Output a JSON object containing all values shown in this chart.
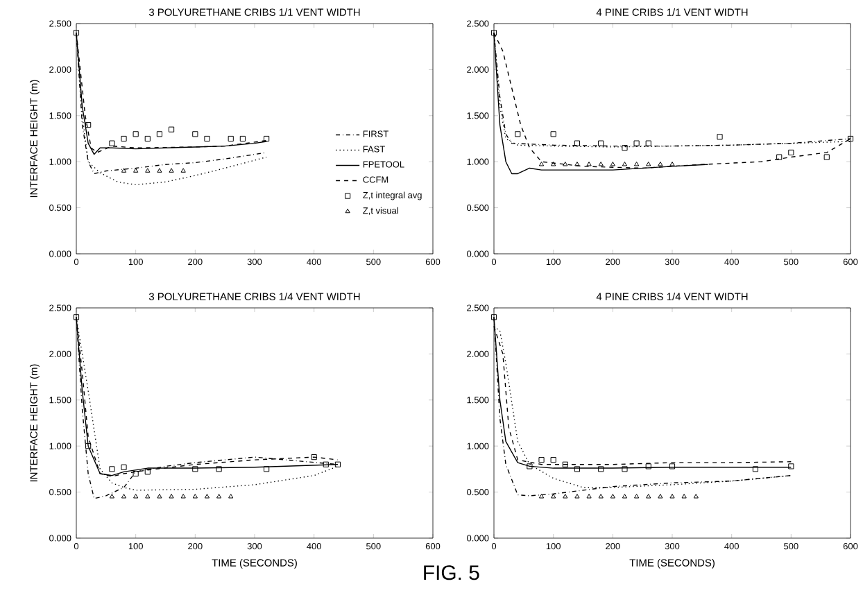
{
  "chart_data": [
    {
      "type": "line",
      "title": "3 POLYURETHANE CRIBS  1/1 VENT WIDTH",
      "ylabel": "INTERFACE HEIGHT (m)",
      "xlim": [
        0,
        600
      ],
      "ylim": [
        0,
        2.5
      ],
      "xticks": [
        0,
        100,
        200,
        300,
        400,
        500,
        600
      ],
      "yticks": [
        {
          "value": 0,
          "label": "0.000"
        },
        {
          "value": 0.5,
          "label": "0.500"
        },
        {
          "value": 1,
          "label": "1.000"
        },
        {
          "value": 1.5,
          "label": "1.500"
        },
        {
          "value": 2,
          "label": "2.000"
        },
        {
          "value": 2.5,
          "label": "2.500"
        }
      ],
      "legend": "right",
      "series": [
        {
          "name": "FIRST",
          "line_style": "dashdot",
          "color": "#000000",
          "x": [
            0,
            10,
            20,
            30,
            50,
            100,
            150,
            200,
            250,
            320
          ],
          "values": [
            2.4,
            1.4,
            1.0,
            0.87,
            0.9,
            0.93,
            0.97,
            0.99,
            1.03,
            1.1
          ]
        },
        {
          "name": "FAST",
          "line_style": "dotted",
          "color": "#000000",
          "x": [
            0,
            10,
            20,
            40,
            70,
            100,
            150,
            200,
            250,
            320
          ],
          "values": [
            2.4,
            1.5,
            1.0,
            0.88,
            0.78,
            0.75,
            0.78,
            0.85,
            0.93,
            1.05
          ]
        },
        {
          "name": "FPETOOL",
          "line_style": "solid",
          "color": "#000000",
          "x": [
            0,
            10,
            20,
            30,
            40,
            60,
            100,
            150,
            200,
            250,
            300,
            320
          ],
          "values": [
            2.4,
            1.6,
            1.2,
            1.08,
            1.15,
            1.15,
            1.14,
            1.15,
            1.16,
            1.17,
            1.2,
            1.22
          ]
        },
        {
          "name": "CCFM",
          "line_style": "dashed",
          "color": "#000000",
          "x": [
            0,
            15,
            25,
            35,
            60,
            100,
            200,
            250,
            320
          ],
          "values": [
            2.4,
            1.5,
            1.15,
            1.1,
            1.17,
            1.15,
            1.16,
            1.17,
            1.23
          ]
        },
        {
          "name": "Z,t integral avg",
          "type": "scatter",
          "marker": "square",
          "color": "#000000",
          "x": [
            0,
            20,
            60,
            80,
            100,
            120,
            140,
            160,
            200,
            220,
            260,
            280,
            320
          ],
          "values": [
            2.4,
            1.4,
            1.2,
            1.25,
            1.3,
            1.25,
            1.3,
            1.35,
            1.3,
            1.25,
            1.25,
            1.25,
            1.25
          ]
        },
        {
          "name": "Z,t visual",
          "type": "scatter",
          "marker": "triangle",
          "color": "#000000",
          "x": [
            80,
            100,
            120,
            140,
            160,
            180
          ],
          "values": [
            0.9,
            0.9,
            0.9,
            0.9,
            0.9,
            0.9
          ]
        }
      ]
    },
    {
      "type": "line",
      "title": "4 PINE CRIBS  1/1 VENT WIDTH",
      "xlim": [
        0,
        600
      ],
      "ylim": [
        0,
        2.5
      ],
      "xticks": [
        0,
        100,
        200,
        300,
        400,
        500,
        600
      ],
      "yticks": [
        {
          "value": 0,
          "label": "0.000"
        },
        {
          "value": 0.5,
          "label": "0.500"
        },
        {
          "value": 1,
          "label": "1.000"
        },
        {
          "value": 1.5,
          "label": "1.500"
        },
        {
          "value": 2,
          "label": "2.000"
        },
        {
          "value": 2.5,
          "label": "2.500"
        }
      ],
      "series": [
        {
          "line_style": "dashdot",
          "color": "#000000",
          "x": [
            0,
            10,
            20,
            30,
            100,
            200,
            300,
            400,
            500,
            600
          ],
          "values": [
            2.4,
            1.7,
            1.3,
            1.2,
            1.18,
            1.17,
            1.17,
            1.18,
            1.2,
            1.25
          ]
        },
        {
          "line_style": "dotted",
          "color": "#000000",
          "x": [
            0,
            10,
            20,
            40,
            100,
            200,
            300,
            400,
            500,
            600
          ],
          "values": [
            2.4,
            1.6,
            1.25,
            1.18,
            1.17,
            1.16,
            1.17,
            1.18,
            1.2,
            1.22
          ]
        },
        {
          "line_style": "solid",
          "color": "#000000",
          "x": [
            0,
            10,
            20,
            30,
            40,
            60,
            80,
            200,
            300,
            360
          ],
          "values": [
            2.4,
            1.4,
            1.0,
            0.87,
            0.87,
            0.93,
            0.91,
            0.91,
            0.95,
            0.97
          ]
        },
        {
          "line_style": "dashed",
          "color": "#000000",
          "x": [
            0,
            15,
            30,
            45,
            60,
            80,
            150,
            250,
            350,
            450,
            500,
            560,
            600
          ],
          "values": [
            2.4,
            2.2,
            1.8,
            1.4,
            1.15,
            1.0,
            0.95,
            0.93,
            0.97,
            1.0,
            1.05,
            1.1,
            1.25
          ]
        },
        {
          "type": "scatter",
          "marker": "square",
          "color": "#000000",
          "x": [
            0,
            40,
            100,
            140,
            180,
            220,
            240,
            260,
            380,
            480,
            500,
            560,
            600
          ],
          "values": [
            2.4,
            1.3,
            1.3,
            1.2,
            1.2,
            1.15,
            1.2,
            1.2,
            1.27,
            1.05,
            1.1,
            1.05,
            1.25
          ]
        },
        {
          "type": "scatter",
          "marker": "triangle",
          "color": "#000000",
          "x": [
            80,
            100,
            120,
            140,
            160,
            180,
            200,
            220,
            240,
            260,
            280,
            300
          ],
          "values": [
            0.97,
            0.97,
            0.97,
            0.97,
            0.97,
            0.97,
            0.97,
            0.97,
            0.97,
            0.97,
            0.97,
            0.97
          ]
        }
      ]
    },
    {
      "type": "line",
      "title": "3 POLYURETHANE CRIBS  1/4 VENT WIDTH",
      "xlabel": "TIME (SECONDS)",
      "ylabel": "INTERFACE HEIGHT (m)",
      "xlim": [
        0,
        600
      ],
      "ylim": [
        0,
        2.5
      ],
      "xticks": [
        0,
        100,
        200,
        300,
        400,
        500,
        600
      ],
      "yticks": [
        {
          "value": 0,
          "label": "0.000"
        },
        {
          "value": 0.5,
          "label": "0.500"
        },
        {
          "value": 1,
          "label": "1.000"
        },
        {
          "value": 1.5,
          "label": "1.500"
        },
        {
          "value": 2,
          "label": "2.000"
        },
        {
          "value": 2.5,
          "label": "2.500"
        }
      ],
      "series": [
        {
          "line_style": "dashdot",
          "color": "#000000",
          "x": [
            0,
            10,
            20,
            30,
            50,
            80,
            100,
            150,
            200,
            300,
            440
          ],
          "values": [
            2.4,
            1.4,
            0.7,
            0.43,
            0.46,
            0.55,
            0.72,
            0.78,
            0.82,
            0.88,
            0.8
          ]
        },
        {
          "line_style": "dotted",
          "color": "#000000",
          "x": [
            0,
            20,
            40,
            60,
            80,
            100,
            200,
            300,
            400,
            440
          ],
          "values": [
            2.4,
            1.6,
            0.75,
            0.6,
            0.55,
            0.52,
            0.53,
            0.58,
            0.68,
            0.78
          ]
        },
        {
          "line_style": "solid",
          "color": "#000000",
          "x": [
            0,
            10,
            20,
            40,
            60,
            80,
            120,
            200,
            300,
            440
          ],
          "values": [
            2.4,
            1.6,
            1.0,
            0.7,
            0.68,
            0.72,
            0.76,
            0.76,
            0.77,
            0.8
          ]
        },
        {
          "line_style": "dashed",
          "color": "#000000",
          "x": [
            0,
            10,
            20,
            40,
            60,
            80,
            120,
            200,
            300,
            400,
            440
          ],
          "values": [
            2.4,
            1.8,
            1.1,
            0.7,
            0.67,
            0.7,
            0.74,
            0.8,
            0.85,
            0.88,
            0.85
          ]
        },
        {
          "type": "scatter",
          "marker": "square",
          "color": "#000000",
          "x": [
            0,
            20,
            60,
            80,
            100,
            120,
            200,
            240,
            320,
            400,
            420,
            440
          ],
          "values": [
            2.4,
            1.0,
            0.75,
            0.77,
            0.7,
            0.72,
            0.75,
            0.75,
            0.75,
            0.88,
            0.8,
            0.8
          ]
        },
        {
          "type": "scatter",
          "marker": "triangle",
          "color": "#000000",
          "x": [
            60,
            80,
            100,
            120,
            140,
            160,
            180,
            200,
            220,
            240,
            260
          ],
          "values": [
            0.45,
            0.45,
            0.45,
            0.45,
            0.45,
            0.45,
            0.45,
            0.45,
            0.45,
            0.45,
            0.45
          ]
        }
      ]
    },
    {
      "type": "line",
      "title": "4 PINE CRIBS  1/4 VENT WIDTH",
      "xlabel": "TIME (SECONDS)",
      "xlim": [
        0,
        600
      ],
      "ylim": [
        0,
        2.5
      ],
      "xticks": [
        0,
        100,
        200,
        300,
        400,
        500,
        600
      ],
      "yticks": [
        {
          "value": 0,
          "label": "0.000"
        },
        {
          "value": 0.5,
          "label": "0.500"
        },
        {
          "value": 1,
          "label": "1.000"
        },
        {
          "value": 1.5,
          "label": "1.500"
        },
        {
          "value": 2,
          "label": "2.000"
        },
        {
          "value": 2.5,
          "label": "2.500"
        }
      ],
      "annotations": [
        "FIG. 5"
      ],
      "series": [
        {
          "line_style": "dashdot",
          "color": "#000000",
          "x": [
            0,
            10,
            20,
            40,
            60,
            100,
            200,
            300,
            400,
            500
          ],
          "values": [
            2.4,
            1.3,
            0.8,
            0.47,
            0.46,
            0.48,
            0.56,
            0.6,
            0.62,
            0.68
          ]
        },
        {
          "line_style": "dotted",
          "color": "#000000",
          "x": [
            0,
            10,
            20,
            40,
            60,
            100,
            150,
            200,
            300,
            400,
            500
          ],
          "values": [
            2.3,
            2.25,
            1.9,
            1.05,
            0.8,
            0.65,
            0.55,
            0.55,
            0.58,
            0.62,
            0.68
          ]
        },
        {
          "line_style": "solid",
          "color": "#000000",
          "x": [
            0,
            10,
            20,
            40,
            60,
            100,
            200,
            300,
            500
          ],
          "values": [
            2.4,
            1.5,
            1.05,
            0.82,
            0.78,
            0.76,
            0.76,
            0.77,
            0.77
          ]
        },
        {
          "line_style": "dashed",
          "color": "#000000",
          "x": [
            0,
            15,
            25,
            40,
            80,
            150,
            200,
            300,
            400,
            500
          ],
          "values": [
            2.3,
            2.0,
            1.2,
            0.85,
            0.8,
            0.8,
            0.8,
            0.82,
            0.82,
            0.83
          ]
        },
        {
          "type": "scatter",
          "marker": "square",
          "color": "#000000",
          "x": [
            0,
            60,
            80,
            100,
            120,
            140,
            180,
            220,
            260,
            300,
            440,
            500
          ],
          "values": [
            2.4,
            0.78,
            0.85,
            0.85,
            0.8,
            0.75,
            0.75,
            0.75,
            0.78,
            0.78,
            0.75,
            0.78
          ]
        },
        {
          "type": "scatter",
          "marker": "triangle",
          "color": "#000000",
          "x": [
            80,
            100,
            120,
            140,
            160,
            180,
            200,
            220,
            240,
            260,
            280,
            300,
            320,
            340
          ],
          "values": [
            0.45,
            0.45,
            0.45,
            0.45,
            0.45,
            0.45,
            0.45,
            0.45,
            0.45,
            0.45,
            0.45,
            0.45,
            0.45,
            0.45
          ]
        }
      ]
    }
  ]
}
